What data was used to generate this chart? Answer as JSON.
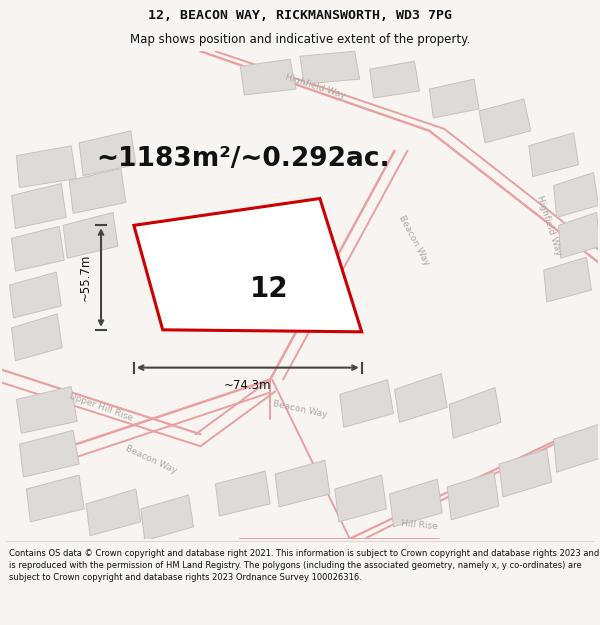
{
  "title_line1": "12, BEACON WAY, RICKMANSWORTH, WD3 7PG",
  "title_line2": "Map shows position and indicative extent of the property.",
  "area_text": "~1183m²/~0.292ac.",
  "dim_height": "~55.7m",
  "dim_width": "~74.3m",
  "plot_number": "12",
  "copyright_text": "Contains OS data © Crown copyright and database right 2021. This information is subject to Crown copyright and database rights 2023 and is reproduced with the permission of HM Land Registry. The polygons (including the associated geometry, namely x, y co-ordinates) are subject to Crown copyright and database rights 2023 Ordnance Survey 100026316.",
  "bg_color": "#f7f4f2",
  "map_bg": "#f5f0ee",
  "building_fill": "#dedad8",
  "building_edge": "#c8c2be",
  "road_color": "#e8a0a0",
  "road_lw": 1.4,
  "plot_color": "#cc0000",
  "plot_lw": 2.2,
  "arrow_color": "#444444",
  "title_color": "#111111",
  "footer_color": "#111111",
  "road_label_color": "#b0a8a4",
  "figwidth": 6.0,
  "figheight": 6.25,
  "title_fontsize": 9.5,
  "subtitle_fontsize": 8.5,
  "area_fontsize": 19,
  "dim_fontsize": 8.5,
  "plot_label_fontsize": 20,
  "footer_fontsize": 6.0,
  "road_label_fontsize": 6.5
}
